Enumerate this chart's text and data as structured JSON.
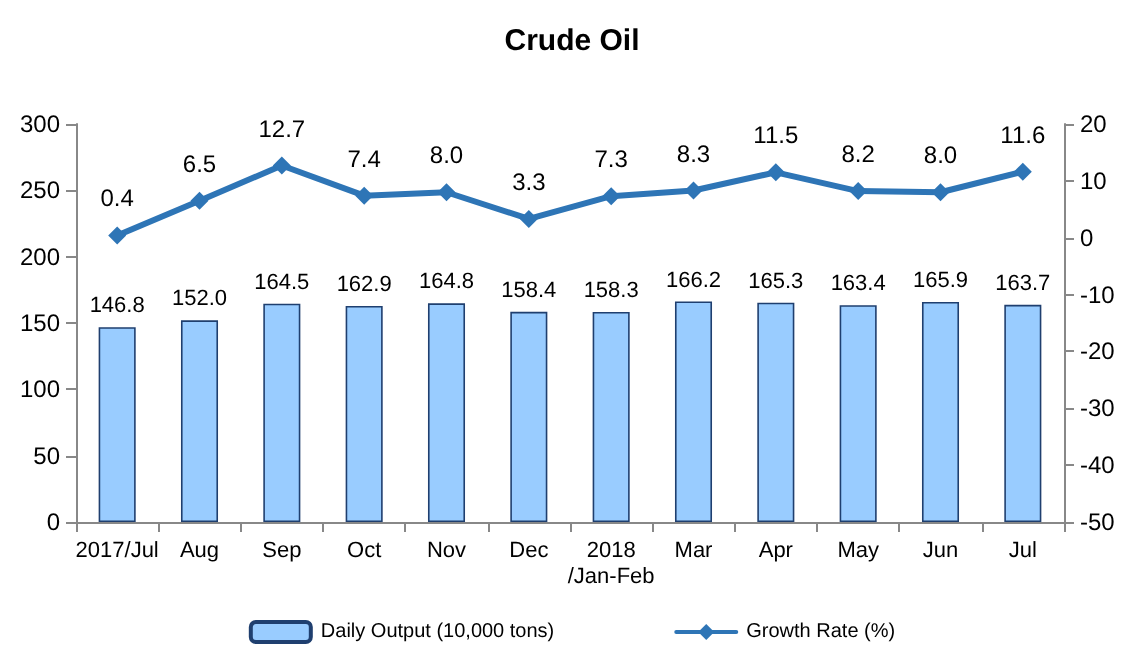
{
  "chart_data": {
    "type": "bar",
    "title": "Crude Oil",
    "categories": [
      "2017/Jul",
      "Aug",
      "Sep",
      "Oct",
      "Nov",
      "Dec",
      "2018\n/Jan-Feb",
      "Mar",
      "Apr",
      "May",
      "Jun",
      "Jul"
    ],
    "series": [
      {
        "name": "Daily Output (10,000 tons)",
        "color": "#99ccff",
        "values": [
          146.8,
          152.0,
          164.5,
          162.9,
          164.8,
          158.4,
          158.3,
          166.2,
          165.3,
          163.4,
          165.9,
          163.7
        ],
        "value_labels": [
          "146.8",
          "152.0",
          "164.5",
          "162.9",
          "164.8",
          "158.4",
          "158.3",
          "166.2",
          "165.3",
          "163.4",
          "165.9",
          "163.7"
        ]
      },
      {
        "name": "Growth Rate (%)",
        "type": "line",
        "axis": "y2",
        "color": "#2e75b6",
        "marker": "diamond",
        "values": [
          0.4,
          6.5,
          12.7,
          7.4,
          8.0,
          3.3,
          7.3,
          8.3,
          11.5,
          8.2,
          8.0,
          11.6
        ],
        "value_labels": [
          "0.4",
          "6.5",
          "12.7",
          "7.4",
          "8.0",
          "3.3",
          "7.3",
          "8.3",
          "11.5",
          "8.2",
          "8.0",
          "11.6"
        ]
      }
    ],
    "ylim": [
      0,
      300
    ],
    "yticks": [
      0,
      50,
      100,
      150,
      200,
      250,
      300
    ],
    "y2lim": [
      -50,
      20
    ],
    "y2ticks": [
      -50,
      -40,
      -30,
      -20,
      -10,
      0,
      10,
      20
    ],
    "grid": false,
    "legend": "bottom"
  }
}
